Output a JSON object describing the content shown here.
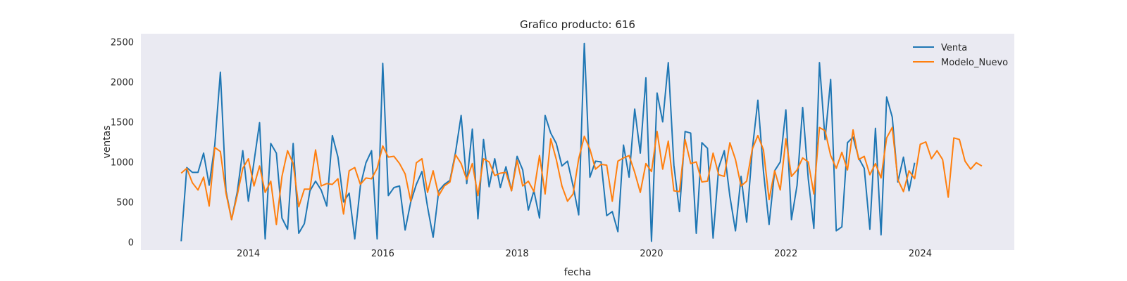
{
  "chart_data": {
    "type": "line",
    "title": "Grafico producto: 616",
    "xlabel": "fecha",
    "ylabel": "ventas",
    "xlim": [
      2012.4,
      2025.4
    ],
    "ylim": [
      -100,
      2600
    ],
    "x_ticks": [
      2014,
      2016,
      2018,
      2020,
      2022,
      2024
    ],
    "x_tick_labels": [
      "2014",
      "2016",
      "2018",
      "2020",
      "2022",
      "2024"
    ],
    "y_ticks": [
      0,
      500,
      1000,
      1500,
      2000,
      2500
    ],
    "y_tick_labels": [
      "0",
      "500",
      "1000",
      "1500",
      "2000",
      "2500"
    ],
    "grid": false,
    "legend_position": "top-right",
    "background": "#eaeaf2",
    "series": [
      {
        "name": "Venta",
        "color": "#1f77b4",
        "x_start": "2013-01",
        "step": "month",
        "values": [
          10,
          930,
          870,
          870,
          1110,
          710,
          1210,
          2120,
          640,
          280,
          620,
          1140,
          510,
          1000,
          1490,
          40,
          1230,
          1110,
          300,
          160,
          1230,
          110,
          230,
          640,
          760,
          650,
          450,
          1330,
          1060,
          500,
          610,
          40,
          700,
          990,
          1140,
          40,
          2230,
          580,
          680,
          700,
          150,
          500,
          720,
          880,
          440,
          60,
          640,
          720,
          770,
          1120,
          1580,
          730,
          1410,
          290,
          1280,
          690,
          1040,
          680,
          940,
          640,
          1070,
          900,
          400,
          640,
          300,
          1580,
          1360,
          1230,
          950,
          1010,
          700,
          340,
          2480,
          810,
          1010,
          1000,
          330,
          380,
          130,
          1210,
          810,
          1660,
          1110,
          2050,
          10,
          1860,
          1500,
          2240,
          960,
          380,
          1380,
          1360,
          110,
          1240,
          1170,
          50,
          930,
          1140,
          570,
          140,
          820,
          250,
          1150,
          1770,
          880,
          220,
          890,
          1000,
          1650,
          280,
          710,
          1680,
          790,
          170,
          2240,
          1280,
          2030,
          140,
          190,
          1240,
          1310,
          1050,
          920,
          160,
          1420,
          90,
          1810,
          1560,
          750,
          1060,
          640,
          990
        ]
      },
      {
        "name": "Modelo_Nuevo",
        "color": "#ff7f0e",
        "x_start": "2013-01",
        "step": "month",
        "values": [
          860,
          920,
          740,
          650,
          810,
          450,
          1180,
          1130,
          610,
          280,
          580,
          920,
          1040,
          700,
          950,
          620,
          760,
          220,
          820,
          1140,
          980,
          440,
          660,
          660,
          1150,
          700,
          730,
          720,
          790,
          350,
          890,
          930,
          720,
          800,
          790,
          920,
          1200,
          1060,
          1070,
          980,
          850,
          510,
          990,
          1040,
          620,
          890,
          580,
          700,
          750,
          1090,
          980,
          780,
          980,
          580,
          1040,
          1000,
          830,
          860,
          870,
          640,
          1020,
          700,
          760,
          630,
          1080,
          600,
          1290,
          1030,
          700,
          510,
          600,
          1040,
          1320,
          1160,
          910,
          970,
          960,
          510,
          1010,
          1050,
          1080,
          870,
          620,
          980,
          880,
          1380,
          910,
          1260,
          640,
          630,
          1280,
          980,
          1000,
          750,
          760,
          1110,
          840,
          820,
          1240,
          1030,
          700,
          760,
          1160,
          1330,
          1150,
          530,
          890,
          650,
          1290,
          820,
          900,
          1050,
          1000,
          600,
          1430,
          1390,
          1080,
          920,
          1120,
          900,
          1400,
          1030,
          1070,
          840,
          980,
          800,
          1300,
          1430,
          780,
          630,
          890,
          790,
          1220,
          1250,
          1040,
          1140,
          1030,
          560,
          1300,
          1280,
          1010,
          910,
          990,
          950
        ]
      }
    ]
  }
}
